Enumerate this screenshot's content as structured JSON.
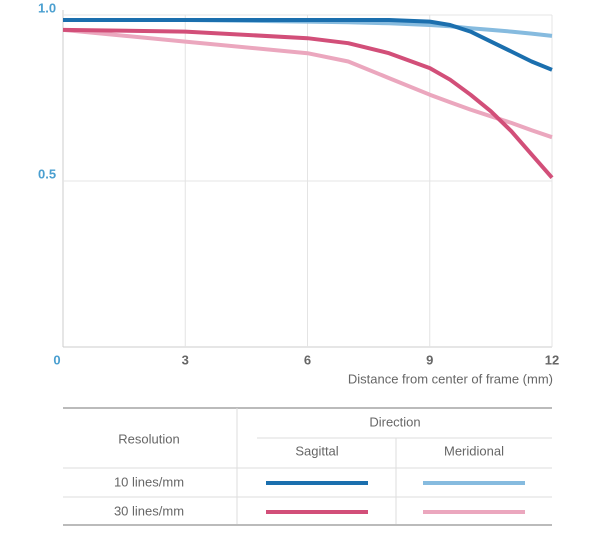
{
  "chart_data": {
    "type": "line",
    "x_label": "Distance from center of frame (mm)",
    "xlim": [
      0,
      12
    ],
    "xticks": [
      0,
      3,
      6,
      9,
      12
    ],
    "ylim": [
      0,
      1
    ],
    "yticks": [
      0.5,
      {
        "value": 1,
        "label": "1.0"
      }
    ],
    "grid": true,
    "x": [
      0,
      3,
      6,
      7,
      8,
      9,
      9.5,
      10,
      10.5,
      11,
      11.5,
      12
    ],
    "series": [
      {
        "color": "#86bbdf",
        "values": [
          0.985,
          0.985,
          0.98,
          0.978,
          0.975,
          0.97,
          0.966,
          0.96,
          0.955,
          0.95,
          0.944,
          0.937
        ]
      },
      {
        "color": "#eba7be",
        "values": [
          0.955,
          0.92,
          0.885,
          0.86,
          0.81,
          0.76,
          0.737,
          0.715,
          0.695,
          0.675,
          0.653,
          0.632
        ]
      },
      {
        "color": "#1b6fae",
        "values": [
          0.985,
          0.985,
          0.985,
          0.985,
          0.985,
          0.98,
          0.97,
          0.95,
          0.92,
          0.89,
          0.86,
          0.835
        ]
      },
      {
        "color": "#d24f79",
        "values": [
          0.955,
          0.95,
          0.93,
          0.915,
          0.885,
          0.84,
          0.805,
          0.76,
          0.71,
          0.65,
          0.58,
          0.51
        ]
      }
    ],
    "legend_table": {
      "row_header": "Resolution",
      "column_group": "Direction",
      "columns": [
        "Sagittal",
        "Meridional"
      ],
      "rows": [
        "10 lines/mm",
        "30 lines/mm"
      ]
    }
  }
}
